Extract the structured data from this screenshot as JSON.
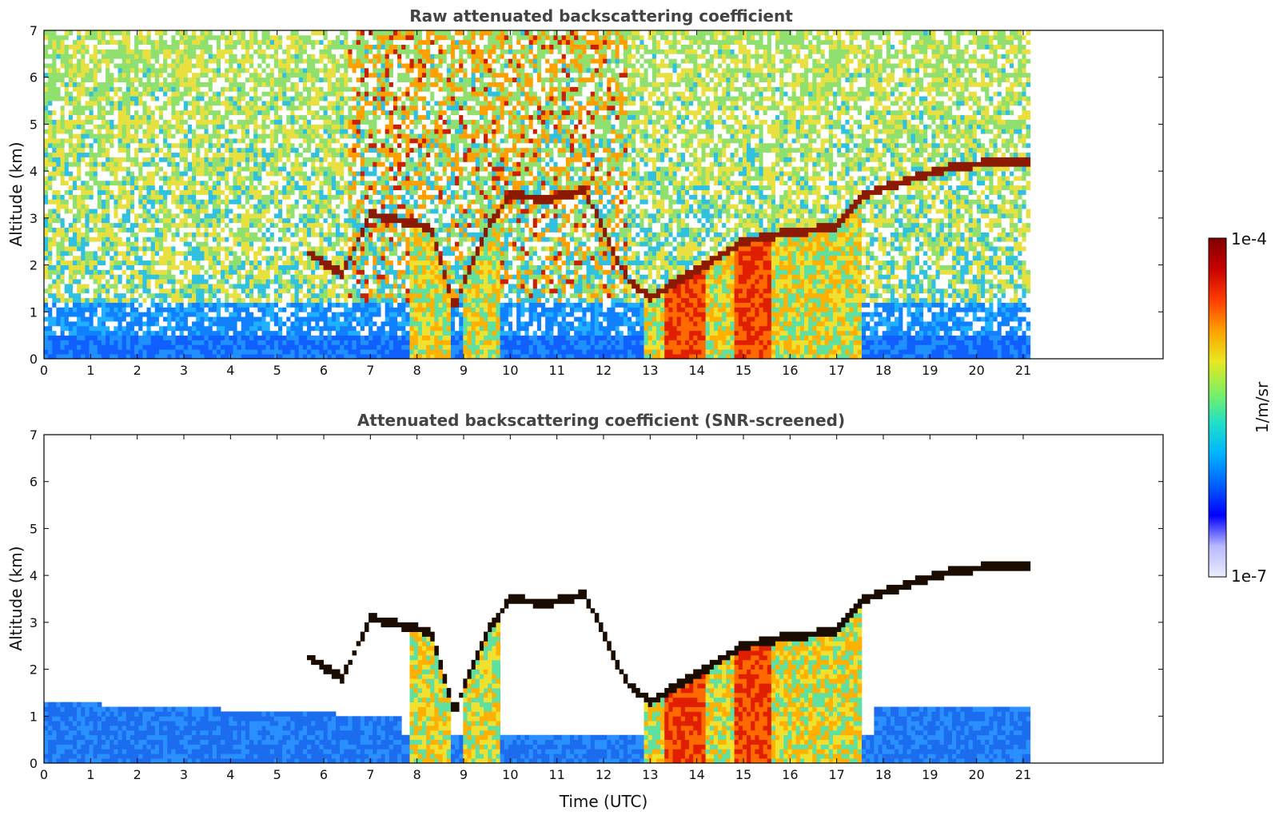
{
  "chart_data": [
    {
      "type": "heatmap",
      "title": "Raw attenuated backscattering coefficient",
      "ylabel": "Altitude (km)",
      "xlabel": "",
      "xlim": [
        0,
        24
      ],
      "ylim": [
        0,
        7
      ],
      "x_ticks": [
        "0",
        "1",
        "2",
        "3",
        "4",
        "5",
        "6",
        "7",
        "8",
        "9",
        "10",
        "11",
        "12",
        "13",
        "14",
        "15",
        "16",
        "17",
        "18",
        "19",
        "20",
        "21"
      ],
      "y_ticks": [
        "0",
        "1",
        "2",
        "3",
        "4",
        "5",
        "6",
        "7"
      ],
      "data_end_hour": 21.15,
      "cloud_layer_points": [
        {
          "t": 5.7,
          "h": 2.25
        },
        {
          "t": 6.4,
          "h": 1.8
        },
        {
          "t": 7.0,
          "h": 3.1
        },
        {
          "t": 8.3,
          "h": 2.8
        },
        {
          "t": 8.8,
          "h": 1.1
        },
        {
          "t": 9.5,
          "h": 2.8
        },
        {
          "t": 10.0,
          "h": 3.5
        },
        {
          "t": 10.8,
          "h": 3.4
        },
        {
          "t": 11.6,
          "h": 3.6
        },
        {
          "t": 12.5,
          "h": 1.7
        },
        {
          "t": 13.0,
          "h": 1.3
        },
        {
          "t": 14.0,
          "h": 1.9
        },
        {
          "t": 15.0,
          "h": 2.5
        },
        {
          "t": 16.0,
          "h": 2.7
        },
        {
          "t": 17.0,
          "h": 2.8
        },
        {
          "t": 17.6,
          "h": 3.5
        },
        {
          "t": 18.5,
          "h": 3.8
        },
        {
          "t": 19.5,
          "h": 4.1
        },
        {
          "t": 20.5,
          "h": 4.2
        },
        {
          "t": 21.1,
          "h": 4.2
        }
      ]
    },
    {
      "type": "heatmap",
      "title": "Attenuated backscattering coefficient (SNR-screened)",
      "ylabel": "Altitude (km)",
      "xlabel": "Time (UTC)",
      "xlim": [
        0,
        24
      ],
      "ylim": [
        0,
        7
      ],
      "x_ticks": [
        "0",
        "1",
        "2",
        "3",
        "4",
        "5",
        "6",
        "7",
        "8",
        "9",
        "10",
        "11",
        "12",
        "13",
        "14",
        "15",
        "16",
        "17",
        "18",
        "19",
        "20",
        "21"
      ],
      "y_ticks": [
        "0",
        "1",
        "2",
        "3",
        "4",
        "5",
        "6",
        "7"
      ],
      "data_end_hour": 21.15
    }
  ],
  "colorbar": {
    "max_label": "1e-4",
    "min_label": "1e-7",
    "unit_label": "1/m/sr",
    "colors": [
      "#ececff",
      "#b8b8ff",
      "#0000ff",
      "#0060ff",
      "#00b4ff",
      "#20e0c8",
      "#80f060",
      "#e8e820",
      "#ffa000",
      "#ff3c00",
      "#c80000",
      "#800000"
    ]
  }
}
